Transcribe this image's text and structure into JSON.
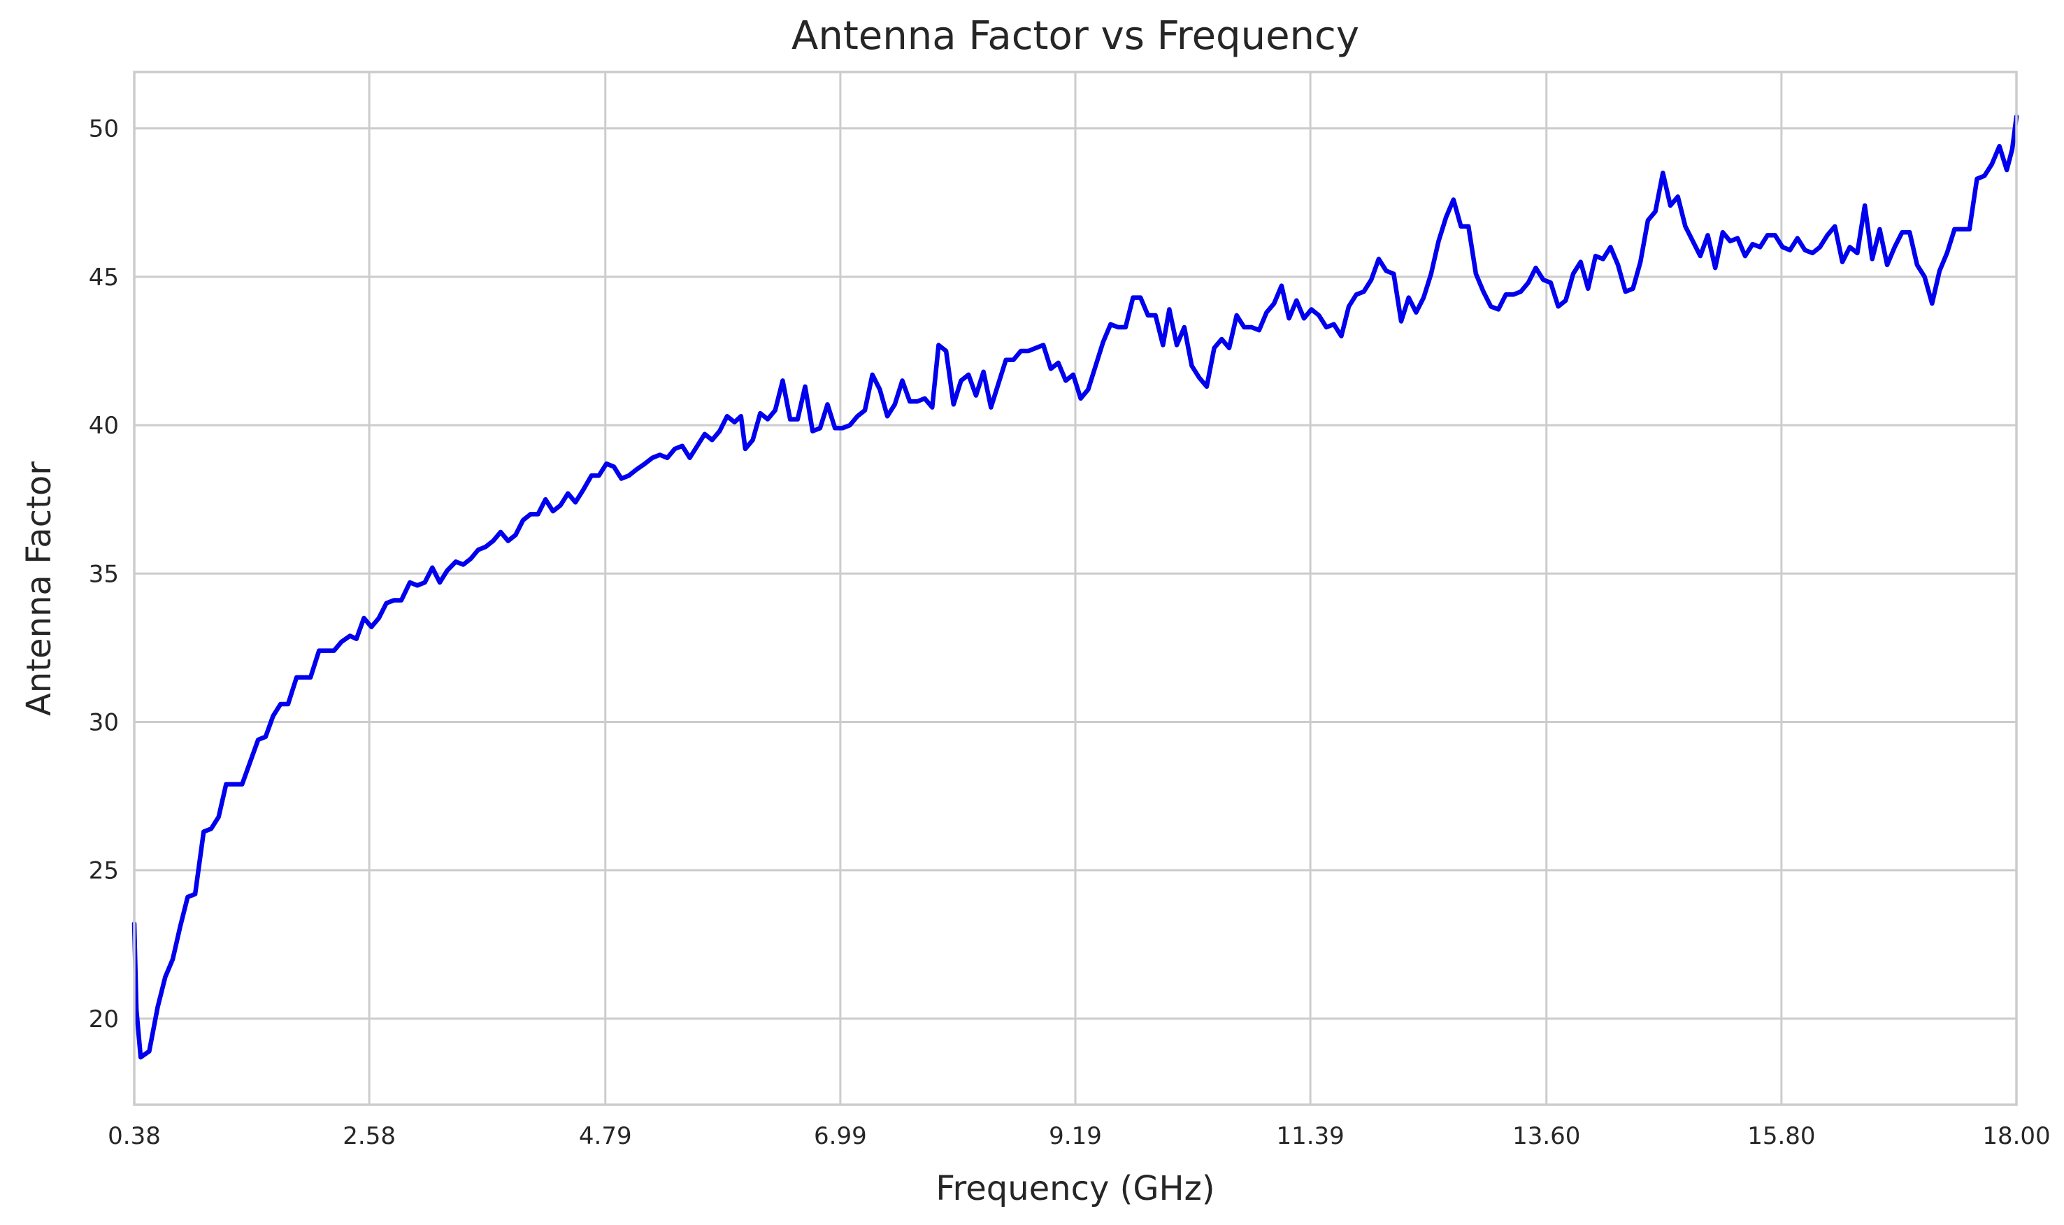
{
  "chart_data": {
    "type": "line",
    "title": "Antenna Factor vs Frequency",
    "xlabel": "Frequency (GHz)",
    "ylabel": "Antenna Factor",
    "xlim": [
      0.38,
      18.0
    ],
    "ylim": [
      17.1,
      51.9
    ],
    "xticks": [
      0.38,
      2.58,
      4.79,
      6.99,
      9.19,
      11.39,
      13.6,
      15.8,
      18.0
    ],
    "xtick_labels": [
      "0.38",
      "2.58",
      "4.79",
      "6.99",
      "9.19",
      "11.39",
      "13.60",
      "15.80",
      "18.00"
    ],
    "yticks": [
      20,
      25,
      30,
      35,
      40,
      45,
      50
    ],
    "ytick_labels": [
      "20",
      "25",
      "30",
      "35",
      "40",
      "45",
      "50"
    ],
    "grid": true,
    "line_color": "#0000ee",
    "series": [
      {
        "name": "Antenna Factor",
        "points": [
          [
            0.38,
            23.2
          ],
          [
            0.4,
            20.3
          ],
          [
            0.44,
            18.7
          ],
          [
            0.52,
            18.9
          ],
          [
            0.6,
            20.4
          ],
          [
            0.67,
            21.4
          ],
          [
            0.74,
            22.0
          ],
          [
            0.81,
            23.1
          ],
          [
            0.88,
            24.1
          ],
          [
            0.95,
            24.2
          ],
          [
            1.03,
            26.3
          ],
          [
            1.1,
            26.4
          ],
          [
            1.17,
            26.8
          ],
          [
            1.24,
            27.9
          ],
          [
            1.33,
            27.9
          ],
          [
            1.39,
            27.9
          ],
          [
            1.46,
            28.6
          ],
          [
            1.54,
            29.4
          ],
          [
            1.61,
            29.5
          ],
          [
            1.68,
            30.2
          ],
          [
            1.75,
            30.6
          ],
          [
            1.82,
            30.6
          ],
          [
            1.9,
            31.5
          ],
          [
            1.97,
            31.5
          ],
          [
            2.03,
            31.5
          ],
          [
            2.11,
            32.4
          ],
          [
            2.18,
            32.4
          ],
          [
            2.25,
            32.4
          ],
          [
            2.32,
            32.7
          ],
          [
            2.4,
            32.9
          ],
          [
            2.46,
            32.8
          ],
          [
            2.53,
            33.5
          ],
          [
            2.6,
            33.2
          ],
          [
            2.67,
            33.5
          ],
          [
            2.74,
            34.0
          ],
          [
            2.81,
            34.1
          ],
          [
            2.88,
            34.1
          ],
          [
            2.96,
            34.7
          ],
          [
            3.03,
            34.6
          ],
          [
            3.1,
            34.7
          ],
          [
            3.17,
            35.2
          ],
          [
            3.24,
            34.7
          ],
          [
            3.31,
            35.1
          ],
          [
            3.39,
            35.4
          ],
          [
            3.46,
            35.3
          ],
          [
            3.53,
            35.5
          ],
          [
            3.6,
            35.8
          ],
          [
            3.67,
            35.9
          ],
          [
            3.74,
            36.1
          ],
          [
            3.81,
            36.4
          ],
          [
            3.88,
            36.1
          ],
          [
            3.95,
            36.3
          ],
          [
            4.02,
            36.8
          ],
          [
            4.09,
            37.0
          ],
          [
            4.16,
            37.0
          ],
          [
            4.23,
            37.5
          ],
          [
            4.3,
            37.1
          ],
          [
            4.37,
            37.3
          ],
          [
            4.44,
            37.7
          ],
          [
            4.51,
            37.4
          ],
          [
            4.58,
            37.8
          ],
          [
            4.66,
            38.3
          ],
          [
            4.73,
            38.3
          ],
          [
            4.8,
            38.7
          ],
          [
            4.87,
            38.6
          ],
          [
            4.94,
            38.2
          ],
          [
            5.01,
            38.3
          ],
          [
            5.08,
            38.5
          ],
          [
            5.16,
            38.7
          ],
          [
            5.23,
            38.9
          ],
          [
            5.3,
            39.0
          ],
          [
            5.37,
            38.9
          ],
          [
            5.44,
            39.2
          ],
          [
            5.51,
            39.3
          ],
          [
            5.58,
            38.9
          ],
          [
            5.65,
            39.3
          ],
          [
            5.72,
            39.7
          ],
          [
            5.79,
            39.5
          ],
          [
            5.86,
            39.8
          ],
          [
            5.93,
            40.3
          ],
          [
            6.0,
            40.1
          ],
          [
            6.06,
            40.3
          ],
          [
            6.1,
            39.2
          ],
          [
            6.17,
            39.5
          ],
          [
            6.24,
            40.4
          ],
          [
            6.31,
            40.2
          ],
          [
            6.38,
            40.5
          ],
          [
            6.45,
            41.5
          ],
          [
            6.52,
            40.2
          ],
          [
            6.59,
            40.2
          ],
          [
            6.66,
            41.3
          ],
          [
            6.73,
            39.8
          ],
          [
            6.8,
            39.9
          ],
          [
            6.87,
            40.7
          ],
          [
            6.94,
            39.9
          ],
          [
            7.01,
            39.9
          ],
          [
            7.08,
            40.0
          ],
          [
            7.15,
            40.3
          ],
          [
            7.22,
            40.5
          ],
          [
            7.29,
            41.7
          ],
          [
            7.36,
            41.2
          ],
          [
            7.43,
            40.3
          ],
          [
            7.5,
            40.7
          ],
          [
            7.57,
            41.5
          ],
          [
            7.64,
            40.8
          ],
          [
            7.71,
            40.8
          ],
          [
            7.78,
            40.9
          ],
          [
            7.85,
            40.6
          ],
          [
            7.91,
            42.7
          ],
          [
            7.98,
            42.5
          ],
          [
            8.05,
            40.7
          ],
          [
            8.12,
            41.5
          ],
          [
            8.19,
            41.7
          ],
          [
            8.26,
            41.0
          ],
          [
            8.33,
            41.8
          ],
          [
            8.4,
            40.6
          ],
          [
            8.47,
            41.4
          ],
          [
            8.54,
            42.2
          ],
          [
            8.61,
            42.2
          ],
          [
            8.68,
            42.5
          ],
          [
            8.75,
            42.5
          ],
          [
            8.82,
            42.6
          ],
          [
            8.89,
            42.7
          ],
          [
            8.96,
            41.9
          ],
          [
            9.03,
            42.1
          ],
          [
            9.1,
            41.5
          ],
          [
            9.17,
            41.7
          ],
          [
            9.24,
            40.9
          ],
          [
            9.31,
            41.2
          ],
          [
            9.38,
            42.0
          ],
          [
            9.45,
            42.8
          ],
          [
            9.52,
            43.4
          ],
          [
            9.59,
            43.3
          ],
          [
            9.66,
            43.3
          ],
          [
            9.73,
            44.3
          ],
          [
            9.8,
            44.3
          ],
          [
            9.87,
            43.7
          ],
          [
            9.94,
            43.7
          ],
          [
            10.01,
            42.7
          ],
          [
            10.07,
            43.9
          ],
          [
            10.14,
            42.7
          ],
          [
            10.21,
            43.3
          ],
          [
            10.28,
            42.0
          ],
          [
            10.35,
            41.6
          ],
          [
            10.42,
            41.3
          ],
          [
            10.49,
            42.6
          ],
          [
            10.56,
            42.9
          ],
          [
            10.63,
            42.6
          ],
          [
            10.7,
            43.7
          ],
          [
            10.77,
            43.3
          ],
          [
            10.84,
            43.3
          ],
          [
            10.91,
            43.2
          ],
          [
            10.98,
            43.8
          ],
          [
            11.05,
            44.1
          ],
          [
            11.12,
            44.7
          ],
          [
            11.19,
            43.6
          ],
          [
            11.26,
            44.2
          ],
          [
            11.33,
            43.6
          ],
          [
            11.4,
            43.9
          ],
          [
            11.47,
            43.7
          ],
          [
            11.54,
            43.3
          ],
          [
            11.61,
            43.4
          ],
          [
            11.68,
            43.0
          ],
          [
            11.75,
            44.0
          ],
          [
            11.82,
            44.4
          ],
          [
            11.89,
            44.5
          ],
          [
            11.96,
            44.9
          ],
          [
            12.03,
            45.6
          ],
          [
            12.1,
            45.2
          ],
          [
            12.17,
            45.1
          ],
          [
            12.24,
            43.5
          ],
          [
            12.31,
            44.3
          ],
          [
            12.38,
            43.8
          ],
          [
            12.45,
            44.3
          ],
          [
            12.52,
            45.1
          ],
          [
            12.59,
            46.2
          ],
          [
            12.66,
            47.0
          ],
          [
            12.73,
            47.6
          ],
          [
            12.8,
            46.7
          ],
          [
            12.87,
            46.7
          ],
          [
            12.94,
            45.1
          ],
          [
            13.01,
            44.5
          ],
          [
            13.08,
            44.0
          ],
          [
            13.15,
            43.9
          ],
          [
            13.22,
            44.4
          ],
          [
            13.29,
            44.4
          ],
          [
            13.36,
            44.5
          ],
          [
            13.43,
            44.8
          ],
          [
            13.5,
            45.3
          ],
          [
            13.57,
            44.9
          ],
          [
            13.64,
            44.8
          ],
          [
            13.71,
            44.0
          ],
          [
            13.78,
            44.2
          ],
          [
            13.85,
            45.1
          ],
          [
            13.92,
            45.5
          ],
          [
            13.99,
            44.6
          ],
          [
            14.06,
            45.7
          ],
          [
            14.13,
            45.6
          ],
          [
            14.2,
            46.0
          ],
          [
            14.27,
            45.4
          ],
          [
            14.34,
            44.5
          ],
          [
            14.41,
            44.6
          ],
          [
            14.48,
            45.5
          ],
          [
            14.55,
            46.9
          ],
          [
            14.62,
            47.2
          ],
          [
            14.69,
            48.5
          ],
          [
            14.76,
            47.4
          ],
          [
            14.83,
            47.7
          ],
          [
            14.9,
            46.7
          ],
          [
            14.97,
            46.2
          ],
          [
            15.04,
            45.7
          ],
          [
            15.11,
            46.4
          ],
          [
            15.18,
            45.3
          ],
          [
            15.25,
            46.5
          ],
          [
            15.32,
            46.2
          ],
          [
            15.39,
            46.3
          ],
          [
            15.46,
            45.7
          ],
          [
            15.53,
            46.1
          ],
          [
            15.6,
            46.0
          ],
          [
            15.67,
            46.4
          ],
          [
            15.74,
            46.4
          ],
          [
            15.81,
            46.0
          ],
          [
            15.88,
            45.9
          ],
          [
            15.95,
            46.3
          ],
          [
            16.02,
            45.9
          ],
          [
            16.09,
            45.8
          ],
          [
            16.16,
            46.0
          ],
          [
            16.23,
            46.4
          ],
          [
            16.3,
            46.7
          ],
          [
            16.37,
            45.5
          ],
          [
            16.44,
            46.0
          ],
          [
            16.51,
            45.8
          ],
          [
            16.58,
            47.4
          ],
          [
            16.65,
            45.6
          ],
          [
            16.72,
            46.6
          ],
          [
            16.79,
            45.4
          ],
          [
            16.86,
            46.0
          ],
          [
            16.93,
            46.5
          ],
          [
            17.0,
            46.5
          ],
          [
            17.07,
            45.4
          ],
          [
            17.14,
            45.0
          ],
          [
            17.21,
            44.1
          ],
          [
            17.28,
            45.2
          ],
          [
            17.35,
            45.8
          ],
          [
            17.42,
            46.6
          ],
          [
            17.49,
            46.6
          ],
          [
            17.56,
            46.6
          ],
          [
            17.63,
            48.3
          ],
          [
            17.7,
            48.4
          ],
          [
            17.77,
            48.8
          ],
          [
            17.84,
            49.4
          ],
          [
            17.91,
            48.6
          ],
          [
            17.96,
            49.3
          ],
          [
            18.0,
            50.4
          ]
        ]
      }
    ]
  }
}
